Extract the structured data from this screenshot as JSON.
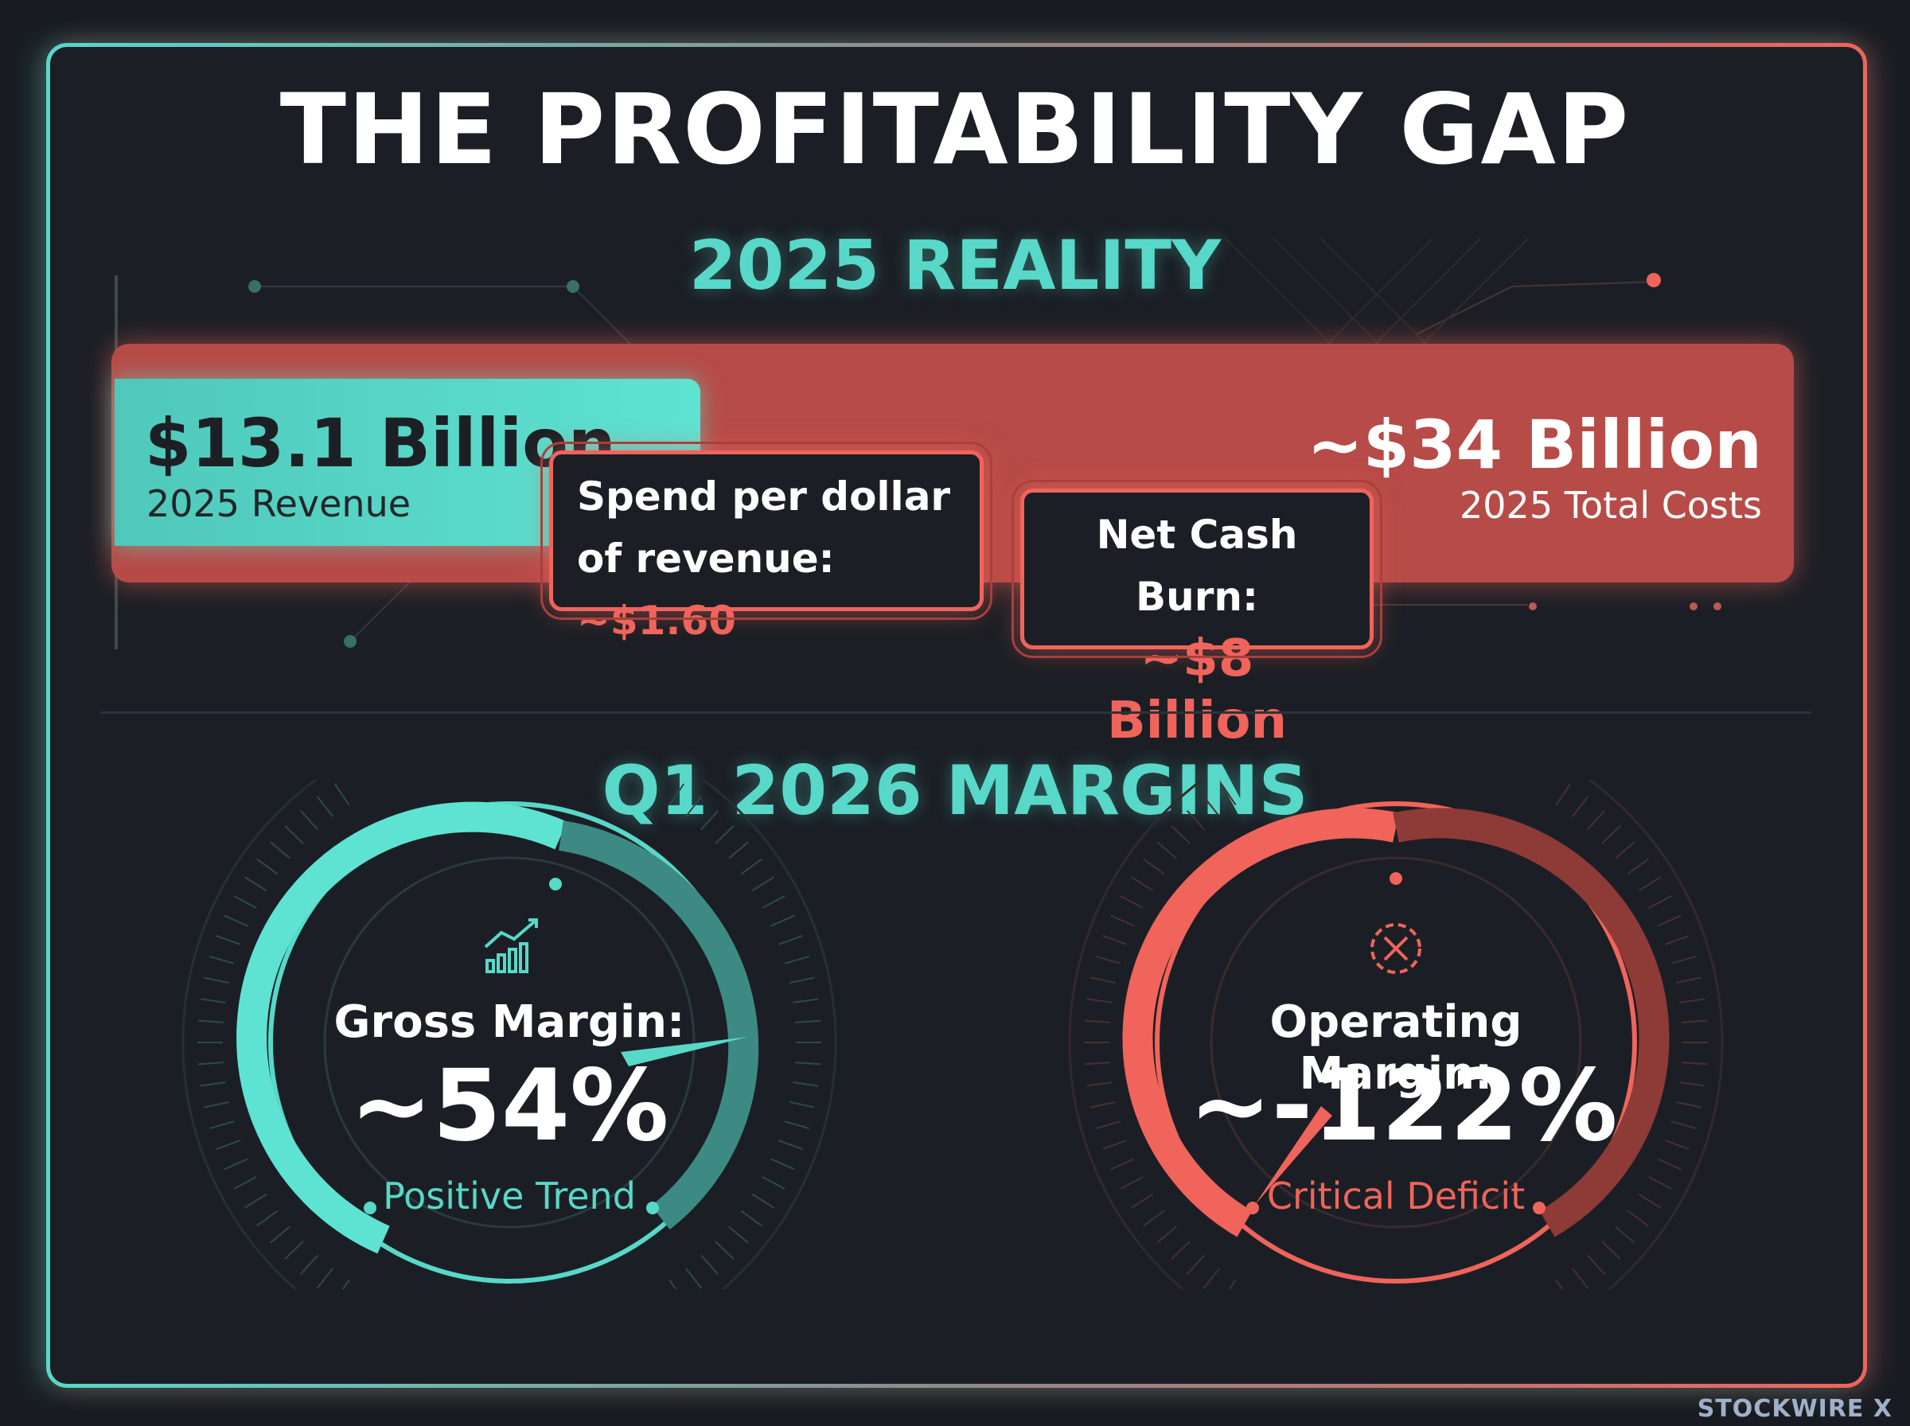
{
  "title": "THE PROFITABILITY GAP",
  "reality": {
    "title": "2025 REALITY",
    "revenue": {
      "value": "$13.1 Billion",
      "label": "2025 Revenue"
    },
    "costs": {
      "value": "~$34 Billion",
      "label": "2025 Total Costs"
    },
    "spend_callout": {
      "text": "Spend per dollar of revenue:",
      "value": "~$1.60"
    },
    "burn_callout": {
      "text": "Net Cash Burn:",
      "value": "~$8 Billion"
    }
  },
  "margins": {
    "title": "Q1 2026 MARGINS",
    "gross": {
      "label": "Gross Margin:",
      "value": "~54%",
      "status": "Positive Trend"
    },
    "operating": {
      "label": "Operating Margin:",
      "value": "~-122%",
      "status": "Critical Deficit"
    }
  },
  "watermark": "STOCKWIRE X",
  "colors": {
    "teal": "#58d8c8",
    "red": "#f0645b",
    "background": "#181c22"
  },
  "icons": {
    "gross": "rising-bar-chart-icon",
    "operating": "crosshair-target-icon"
  },
  "chart_data": {
    "type": "bar",
    "categories": [
      "2025 Revenue",
      "2025 Total Costs"
    ],
    "values": [
      13.1,
      34
    ],
    "gauges": [
      {
        "label": "Gross Margin:",
        "value": 54
      },
      {
        "label": "Operating Margin:",
        "value": -122
      }
    ]
  }
}
